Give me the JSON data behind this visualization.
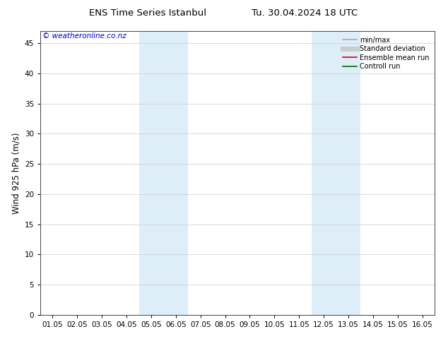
{
  "title_left": "ENS Time Series Istanbul",
  "title_right": "Tu. 30.04.2024 18 UTC",
  "ylabel": "Wind 925 hPa (m/s)",
  "watermark": "© weatheronline.co.nz",
  "xlabels": [
    "01.05",
    "02.05",
    "03.05",
    "04.05",
    "05.05",
    "06.05",
    "07.05",
    "08.05",
    "09.05",
    "10.05",
    "11.05",
    "12.05",
    "13.05",
    "14.05",
    "15.05",
    "16.05"
  ],
  "ylim": [
    0,
    47
  ],
  "yticks": [
    0,
    5,
    10,
    15,
    20,
    25,
    30,
    35,
    40,
    45
  ],
  "shade_regions": [
    {
      "xstart": 3.5,
      "xend": 5.5,
      "color": "#ddeef9"
    },
    {
      "xstart": 10.5,
      "xend": 12.5,
      "color": "#ddeef9"
    }
  ],
  "legend_items": [
    {
      "label": "min/max",
      "color": "#aaaaaa",
      "lw": 1.2,
      "style": "solid"
    },
    {
      "label": "Standard deviation",
      "color": "#cccccc",
      "lw": 5,
      "style": "solid"
    },
    {
      "label": "Ensemble mean run",
      "color": "#dd0000",
      "lw": 1.2,
      "style": "solid"
    },
    {
      "label": "Controll run",
      "color": "#006600",
      "lw": 1.2,
      "style": "solid"
    }
  ],
  "bg_color": "#ffffff",
  "plot_bg_color": "#ffffff",
  "grid_color": "#cccccc",
  "tick_label_fontsize": 7.5,
  "axis_label_fontsize": 8.5,
  "title_fontsize": 9.5,
  "legend_fontsize": 7,
  "watermark_color": "#0000bb",
  "watermark_fontsize": 7.5
}
